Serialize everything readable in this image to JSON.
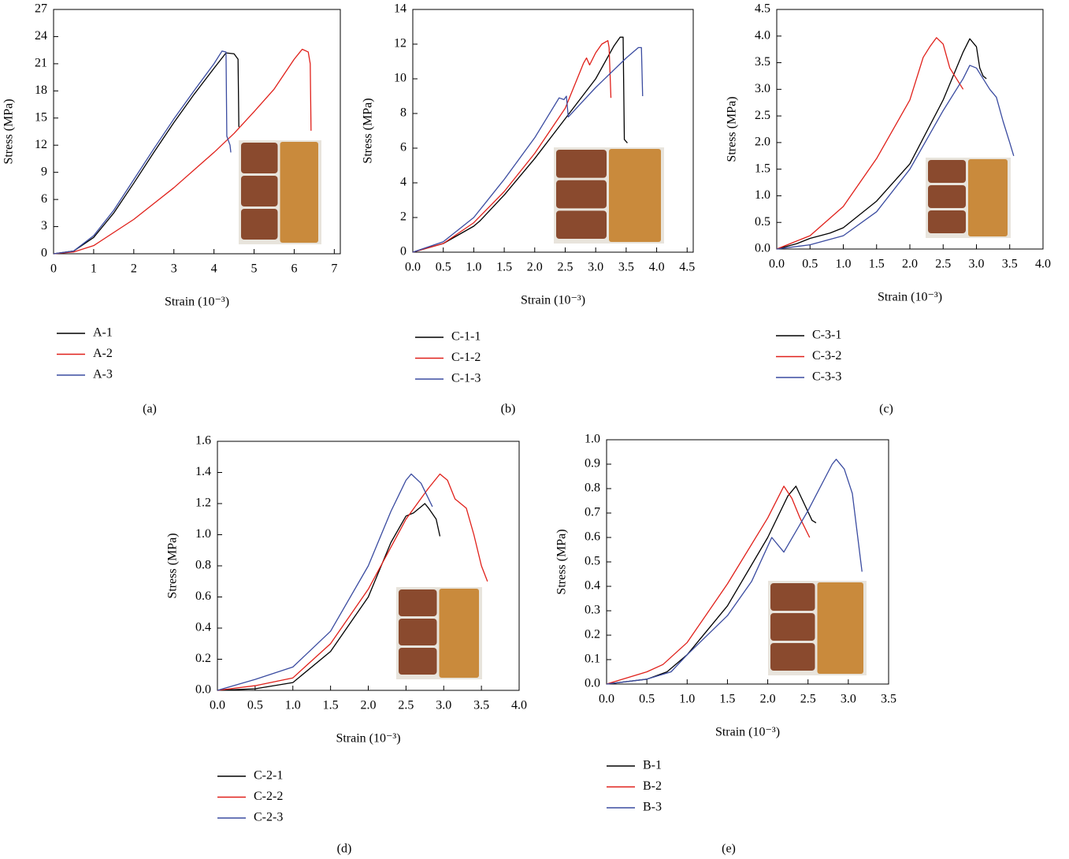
{
  "chart_data": [
    {
      "type": "line",
      "label": "(a)",
      "x_label": "Strain (10⁻³)",
      "y_label": "Stress (MPa)",
      "xlim": [
        0,
        7.15
      ],
      "ylim": [
        0,
        27
      ],
      "xticks": [
        0,
        1,
        2,
        3,
        4,
        5,
        6,
        7
      ],
      "yticks": [
        0,
        3,
        6,
        9,
        12,
        15,
        18,
        21,
        24,
        27
      ],
      "series": [
        {
          "name": "A-1",
          "color": "#000000",
          "x": [
            0,
            0.5,
            1,
            1.5,
            2,
            2.5,
            3,
            3.5,
            4,
            4.3,
            4.5,
            4.6,
            4.62
          ],
          "values": [
            0,
            0.3,
            1.8,
            4.5,
            7.8,
            11.2,
            14.5,
            17.6,
            20.5,
            22.2,
            22.1,
            21.5,
            14
          ]
        },
        {
          "name": "A-2",
          "color": "#e0201a",
          "x": [
            0,
            0.5,
            1,
            2,
            3,
            4,
            4.5,
            5,
            5.5,
            6,
            6.2,
            6.35,
            6.4,
            6.42
          ],
          "values": [
            0,
            0.2,
            0.9,
            3.8,
            7.3,
            11.2,
            13.3,
            15.7,
            18.2,
            21.5,
            22.6,
            22.3,
            21,
            13.6
          ]
        },
        {
          "name": "A-3",
          "color": "#3a4ba0",
          "x": [
            0,
            0.5,
            1,
            1.5,
            2,
            2.5,
            3,
            3.5,
            4,
            4.2,
            4.3,
            4.32,
            4.4,
            4.42
          ],
          "values": [
            0,
            0.3,
            2,
            4.8,
            8.2,
            11.6,
            14.9,
            18,
            21,
            22.4,
            22.3,
            13,
            12,
            11.2
          ]
        }
      ]
    },
    {
      "type": "line",
      "label": "(b)",
      "x_label": "Strain (10⁻³)",
      "y_label": "Stress (MPa)",
      "xlim": [
        0,
        4.6
      ],
      "ylim": [
        0,
        14
      ],
      "xticks": [
        {
          "value": 0,
          "label": "0.0"
        },
        0.5,
        {
          "value": 1,
          "label": "1.0"
        },
        1.5,
        {
          "value": 2,
          "label": "2.0"
        },
        2.5,
        {
          "value": 3,
          "label": "3.0"
        },
        3.5,
        {
          "value": 4,
          "label": "4.0"
        },
        4.5
      ],
      "yticks": [
        0,
        2,
        4,
        6,
        8,
        10,
        12,
        14
      ],
      "series": [
        {
          "name": "C-1-1",
          "color": "#000000",
          "x": [
            0,
            0.5,
            1,
            1.1,
            1.5,
            2,
            2.5,
            3,
            3.3,
            3.4,
            3.45,
            3.47,
            3.52
          ],
          "values": [
            0,
            0.5,
            1.5,
            1.8,
            3.3,
            5.4,
            7.7,
            10,
            11.9,
            12.4,
            12.4,
            6.5,
            6.3
          ]
        },
        {
          "name": "C-1-2",
          "color": "#e0201a",
          "x": [
            0,
            0.5,
            1,
            1.5,
            2,
            2.5,
            2.8,
            2.85,
            2.9,
            3.0,
            3.1,
            3.2,
            3.22,
            3.25
          ],
          "values": [
            0,
            0.5,
            1.7,
            3.5,
            5.7,
            8.3,
            10.9,
            11.2,
            10.8,
            11.5,
            12.0,
            12.2,
            11.8,
            8.9
          ]
        },
        {
          "name": "C-1-3",
          "color": "#3a4ba0",
          "x": [
            0,
            0.5,
            1,
            1.5,
            2,
            2.4,
            2.48,
            2.52,
            2.55,
            3,
            3.5,
            3.7,
            3.75,
            3.77
          ],
          "values": [
            0,
            0.6,
            2,
            4.2,
            6.6,
            8.9,
            8.8,
            9.0,
            7.8,
            9.5,
            11.2,
            11.8,
            11.8,
            9
          ]
        }
      ]
    },
    {
      "type": "line",
      "label": "(c)",
      "x_label": "Strain (10⁻³)",
      "y_label": "Stress (MPa)",
      "xlim": [
        0,
        4
      ],
      "ylim": [
        0,
        4.5
      ],
      "xticks": [
        {
          "value": 0,
          "label": "0.0"
        },
        0.5,
        {
          "value": 1,
          "label": "1.0"
        },
        1.5,
        {
          "value": 2,
          "label": "2.0"
        },
        2.5,
        {
          "value": 3,
          "label": "3.0"
        },
        3.5,
        {
          "value": 4,
          "label": "4.0"
        }
      ],
      "yticks": [
        {
          "value": 0,
          "label": "0.0"
        },
        0.5,
        {
          "value": 1,
          "label": "1.0"
        },
        1.5,
        {
          "value": 2,
          "label": "2.0"
        },
        2.5,
        {
          "value": 3,
          "label": "3.0"
        },
        3.5,
        {
          "value": 4,
          "label": "4.0"
        },
        4.5
      ],
      "series": [
        {
          "name": "C-3-1",
          "color": "#000000",
          "x": [
            0,
            0.3,
            0.5,
            0.8,
            1,
            1.5,
            2,
            2.5,
            2.8,
            2.9,
            3.0,
            3.05,
            3.1,
            3.15
          ],
          "values": [
            0,
            0.1,
            0.2,
            0.3,
            0.4,
            0.9,
            1.6,
            2.8,
            3.7,
            3.95,
            3.8,
            3.4,
            3.25,
            3.2
          ]
        },
        {
          "name": "C-3-2",
          "color": "#e0201a",
          "x": [
            0,
            0.2,
            0.5,
            1,
            1.5,
            2,
            2.2,
            2.3,
            2.4,
            2.5,
            2.6,
            2.7,
            2.8
          ],
          "values": [
            0,
            0.1,
            0.25,
            0.8,
            1.7,
            2.8,
            3.6,
            3.8,
            3.97,
            3.85,
            3.4,
            3.2,
            3.0
          ]
        },
        {
          "name": "C-3-3",
          "color": "#3a4ba0",
          "x": [
            0,
            0.5,
            1,
            1.5,
            2,
            2.5,
            2.8,
            2.9,
            3.0,
            3.1,
            3.2,
            3.3,
            3.4,
            3.5,
            3.56
          ],
          "values": [
            0,
            0.08,
            0.25,
            0.7,
            1.5,
            2.6,
            3.2,
            3.45,
            3.4,
            3.2,
            3.0,
            2.85,
            2.4,
            2.0,
            1.75
          ]
        }
      ]
    },
    {
      "type": "line",
      "label": "(d)",
      "x_label": "Strain (10⁻³)",
      "y_label": "Stress (MPa)",
      "xlim": [
        0,
        4
      ],
      "ylim": [
        0,
        1.6
      ],
      "xticks": [
        {
          "value": 0,
          "label": "0.0"
        },
        0.5,
        {
          "value": 1,
          "label": "1.0"
        },
        1.5,
        {
          "value": 2,
          "label": "2.0"
        },
        2.5,
        {
          "value": 3,
          "label": "3.0"
        },
        3.5,
        {
          "value": 4,
          "label": "4.0"
        }
      ],
      "yticks": [
        {
          "value": 0,
          "label": "0.0"
        },
        0.2,
        0.4,
        0.6,
        0.8,
        {
          "value": 1,
          "label": "1.0"
        },
        1.2,
        1.4,
        1.6
      ],
      "series": [
        {
          "name": "C-2-1",
          "color": "#000000",
          "x": [
            0,
            0.5,
            1,
            1.5,
            2,
            2.3,
            2.5,
            2.6,
            2.7,
            2.75,
            2.8,
            2.9,
            2.95
          ],
          "values": [
            0,
            0.01,
            0.05,
            0.25,
            0.6,
            0.95,
            1.12,
            1.14,
            1.18,
            1.2,
            1.17,
            1.1,
            0.99
          ]
        },
        {
          "name": "C-2-2",
          "color": "#e0201a",
          "x": [
            0,
            0.5,
            1,
            1.5,
            2,
            2.5,
            2.8,
            2.95,
            3.05,
            3.15,
            3.3,
            3.4,
            3.5,
            3.58
          ],
          "values": [
            0,
            0.03,
            0.08,
            0.3,
            0.65,
            1.1,
            1.3,
            1.39,
            1.35,
            1.23,
            1.17,
            1.0,
            0.8,
            0.7
          ]
        },
        {
          "name": "C-2-3",
          "color": "#3a4ba0",
          "x": [
            0,
            0.5,
            1,
            1.5,
            2,
            2.3,
            2.5,
            2.57,
            2.7,
            2.85
          ],
          "values": [
            0,
            0.07,
            0.15,
            0.38,
            0.8,
            1.15,
            1.35,
            1.39,
            1.33,
            1.18
          ]
        }
      ]
    },
    {
      "type": "line",
      "label": "(e)",
      "x_label": "Strain (10⁻³)",
      "y_label": "Stress (MPa)",
      "xlim": [
        0,
        3.5
      ],
      "ylim": [
        0,
        1
      ],
      "xticks": [
        {
          "value": 0,
          "label": "0.0"
        },
        0.5,
        {
          "value": 1,
          "label": "1.0"
        },
        1.5,
        {
          "value": 2,
          "label": "2.0"
        },
        2.5,
        {
          "value": 3,
          "label": "3.0"
        },
        3.5
      ],
      "yticks": [
        {
          "value": 0,
          "label": "0.0"
        },
        0.1,
        0.2,
        0.3,
        0.4,
        0.5,
        0.6,
        0.7,
        0.8,
        0.9,
        {
          "value": 1,
          "label": "1.0"
        }
      ],
      "series": [
        {
          "name": "B-1",
          "color": "#000000",
          "x": [
            0,
            0.5,
            0.75,
            1,
            1.5,
            2,
            2.25,
            2.35,
            2.45,
            2.55,
            2.6
          ],
          "values": [
            0,
            0.02,
            0.05,
            0.12,
            0.32,
            0.6,
            0.77,
            0.81,
            0.74,
            0.67,
            0.66
          ]
        },
        {
          "name": "B-2",
          "color": "#e0201a",
          "x": [
            0,
            0.5,
            0.7,
            1,
            1.5,
            2,
            2.2,
            2.3,
            2.4,
            2.52
          ],
          "values": [
            0,
            0.05,
            0.08,
            0.17,
            0.41,
            0.68,
            0.81,
            0.76,
            0.68,
            0.6
          ]
        },
        {
          "name": "B-3",
          "color": "#3a4ba0",
          "x": [
            0,
            0.5,
            0.8,
            1,
            1.5,
            1.8,
            2.05,
            2.2,
            2.5,
            2.8,
            2.85,
            2.95,
            3.05,
            3.17
          ],
          "values": [
            0,
            0.02,
            0.05,
            0.12,
            0.28,
            0.42,
            0.6,
            0.54,
            0.71,
            0.9,
            0.92,
            0.88,
            0.78,
            0.46
          ]
        }
      ]
    }
  ]
}
